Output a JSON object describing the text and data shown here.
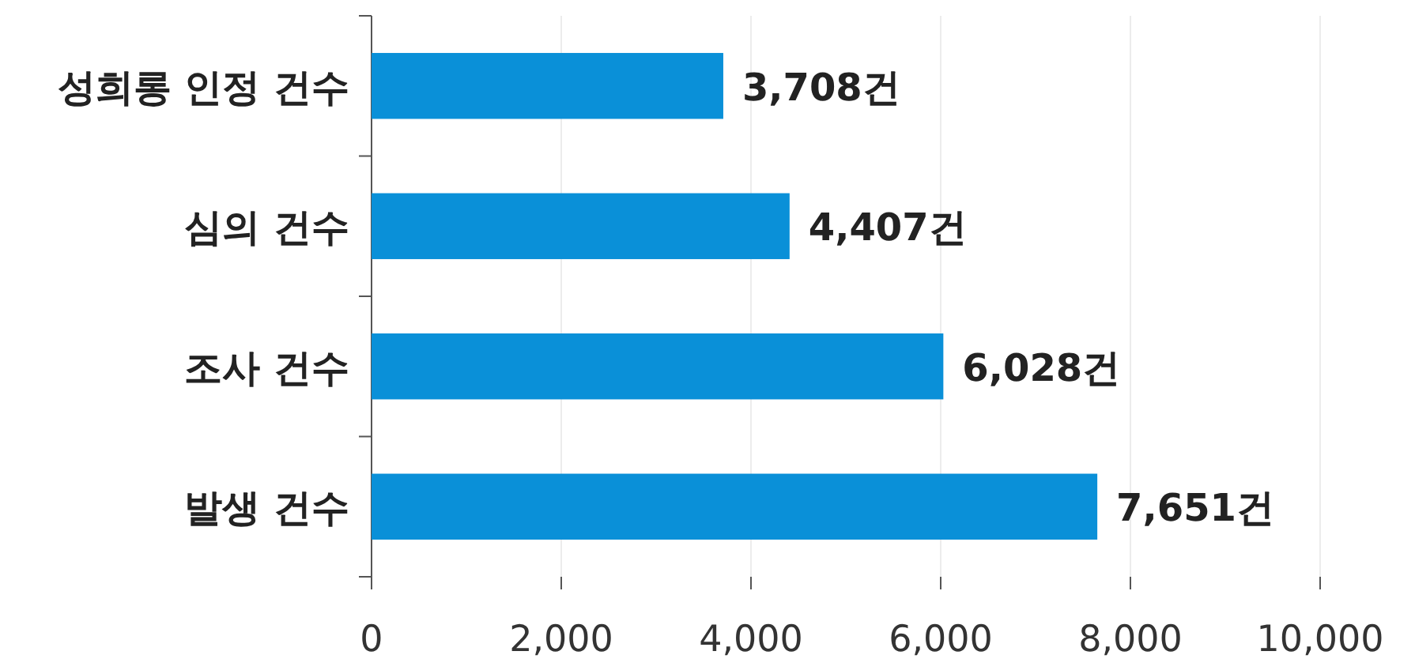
{
  "chart_data": {
    "type": "bar",
    "orientation": "horizontal",
    "categories": [
      "성희롱 인정 건수",
      "심의 건수",
      "조사 건수",
      "발생 건수"
    ],
    "values": [
      3708,
      4407,
      6028,
      7651
    ],
    "value_labels": [
      "3,708건",
      "4,407건",
      "6,028건",
      "7,651건"
    ],
    "color": "#0a90d8",
    "xlim": [
      0,
      10000
    ],
    "xticks": [
      0,
      {
        "value": 2000,
        "label": "2,000"
      },
      {
        "value": 4000,
        "label": "4,000"
      },
      {
        "value": 6000,
        "label": "6,000"
      },
      {
        "value": 8000,
        "label": "8,000"
      },
      {
        "value": 10000,
        "label": "10,000"
      }
    ],
    "grid": "x"
  }
}
